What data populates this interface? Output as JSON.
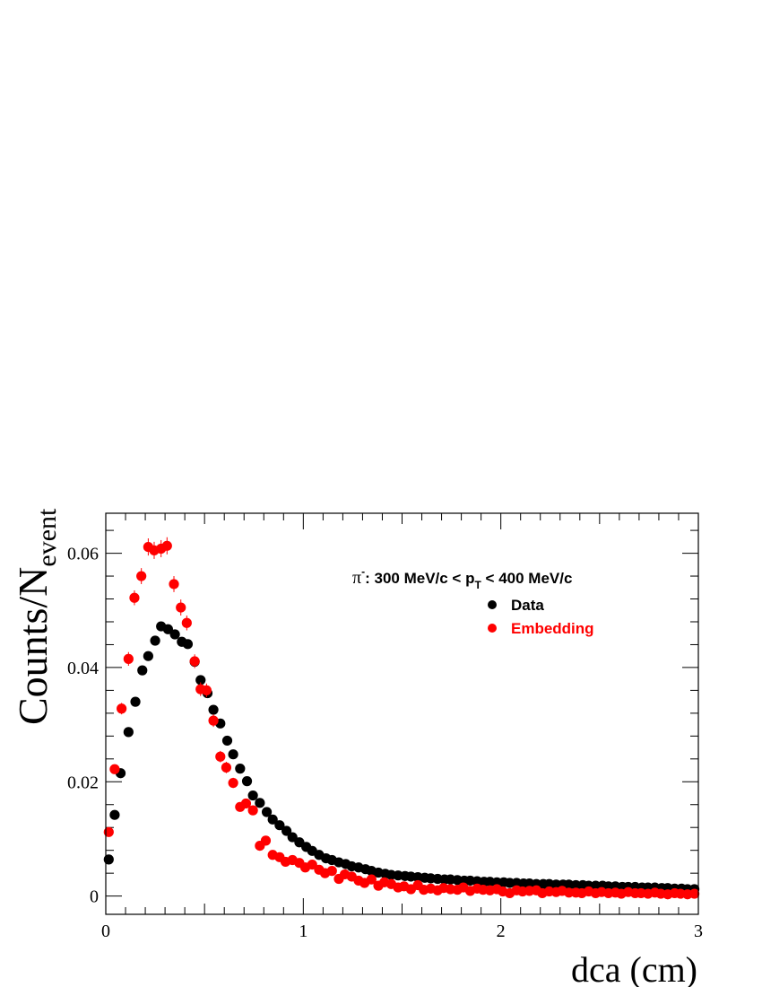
{
  "chart_data": {
    "type": "scatter",
    "xlabel": "dca (cm)",
    "ylabel_main": "Counts/N",
    "ylabel_sub": "event",
    "xlim": [
      0,
      3
    ],
    "ylim": [
      -0.0032,
      0.067
    ],
    "x_ticks": [
      {
        "value": 0,
        "label": "0"
      },
      {
        "value": 1,
        "label": "1"
      },
      {
        "value": 2,
        "label": "2"
      },
      {
        "value": 3,
        "label": "3"
      }
    ],
    "y_ticks": [
      {
        "value": 0,
        "label": "0"
      },
      {
        "value": 0.02,
        "label": "0.02"
      },
      {
        "value": 0.04,
        "label": "0.04"
      },
      {
        "value": 0.06,
        "label": "0.06"
      }
    ],
    "grid": false,
    "legend_placement": "top-right",
    "annotation": {
      "pi_symbol": "π",
      "pi_sup": "-",
      "text_before_sub": ": 300 MeV/c < p",
      "sub": "T",
      "text_after_sub": " < 400 MeV/c"
    },
    "series": [
      {
        "name": "Data",
        "color": "#000000",
        "x": [
          0.015,
          0.045,
          0.075,
          0.115,
          0.15,
          0.185,
          0.215,
          0.25,
          0.28,
          0.315,
          0.35,
          0.385,
          0.415,
          0.45,
          0.48,
          0.515,
          0.545,
          0.58,
          0.615,
          0.645,
          0.68,
          0.715,
          0.745,
          0.78,
          0.815,
          0.845,
          0.88,
          0.915,
          0.945,
          0.98,
          1.015,
          1.045,
          1.08,
          1.115,
          1.145,
          1.18,
          1.215,
          1.245,
          1.28,
          1.315,
          1.345,
          1.38,
          1.415,
          1.445,
          1.48,
          1.515,
          1.545,
          1.58,
          1.615,
          1.645,
          1.68,
          1.715,
          1.745,
          1.78,
          1.815,
          1.845,
          1.88,
          1.915,
          1.945,
          1.98,
          2.015,
          2.045,
          2.08,
          2.115,
          2.145,
          2.18,
          2.215,
          2.245,
          2.28,
          2.315,
          2.345,
          2.38,
          2.415,
          2.445,
          2.48,
          2.515,
          2.545,
          2.58,
          2.615,
          2.645,
          2.68,
          2.715,
          2.745,
          2.78,
          2.815,
          2.845,
          2.88,
          2.915,
          2.945,
          2.98
        ],
        "y": [
          0.0064,
          0.0142,
          0.0215,
          0.0287,
          0.034,
          0.0395,
          0.042,
          0.0447,
          0.0472,
          0.0467,
          0.0458,
          0.0445,
          0.0441,
          0.041,
          0.0378,
          0.0355,
          0.0326,
          0.0302,
          0.0272,
          0.0248,
          0.0223,
          0.0201,
          0.0176,
          0.0163,
          0.0147,
          0.0134,
          0.0124,
          0.0114,
          0.0103,
          0.0094,
          0.0086,
          0.0079,
          0.0072,
          0.0066,
          0.0063,
          0.0059,
          0.0056,
          0.0052,
          0.005,
          0.0047,
          0.0044,
          0.0041,
          0.0039,
          0.0037,
          0.0036,
          0.0035,
          0.0034,
          0.0033,
          0.0032,
          0.0031,
          0.003,
          0.0029,
          0.0029,
          0.0028,
          0.0027,
          0.0027,
          0.0026,
          0.0025,
          0.0025,
          0.0024,
          0.0024,
          0.0023,
          0.0023,
          0.0022,
          0.0022,
          0.0021,
          0.0021,
          0.0021,
          0.002,
          0.002,
          0.002,
          0.0019,
          0.0019,
          0.0018,
          0.0018,
          0.0018,
          0.0017,
          0.0017,
          0.0016,
          0.0016,
          0.0016,
          0.0015,
          0.0015,
          0.0015,
          0.0014,
          0.0014,
          0.0013,
          0.0013,
          0.0012,
          0.0012
        ]
      },
      {
        "name": "Embedding",
        "color": "#ff0000",
        "x": [
          0.015,
          0.045,
          0.08,
          0.115,
          0.145,
          0.18,
          0.215,
          0.245,
          0.28,
          0.31,
          0.345,
          0.38,
          0.41,
          0.45,
          0.48,
          0.51,
          0.545,
          0.58,
          0.61,
          0.645,
          0.68,
          0.71,
          0.745,
          0.78,
          0.81,
          0.845,
          0.88,
          0.91,
          0.945,
          0.98,
          1.01,
          1.045,
          1.08,
          1.11,
          1.145,
          1.18,
          1.21,
          1.245,
          1.28,
          1.31,
          1.345,
          1.38,
          1.41,
          1.445,
          1.48,
          1.51,
          1.545,
          1.58,
          1.61,
          1.645,
          1.68,
          1.71,
          1.745,
          1.78,
          1.81,
          1.845,
          1.88,
          1.91,
          1.945,
          1.98,
          2.01,
          2.045,
          2.08,
          2.11,
          2.145,
          2.18,
          2.21,
          2.245,
          2.28,
          2.31,
          2.345,
          2.38,
          2.41,
          2.445,
          2.48,
          2.51,
          2.545,
          2.58,
          2.61,
          2.645,
          2.68,
          2.71,
          2.745,
          2.78,
          2.81,
          2.845,
          2.88,
          2.91,
          2.945,
          2.98
        ],
        "y": [
          0.0112,
          0.0222,
          0.0328,
          0.0415,
          0.0522,
          0.056,
          0.0611,
          0.0605,
          0.0608,
          0.0613,
          0.0546,
          0.0505,
          0.0478,
          0.0411,
          0.0362,
          0.036,
          0.0307,
          0.0244,
          0.0225,
          0.0198,
          0.0156,
          0.0162,
          0.015,
          0.0088,
          0.0097,
          0.0072,
          0.0068,
          0.006,
          0.0063,
          0.0058,
          0.005,
          0.0055,
          0.0046,
          0.004,
          0.0044,
          0.003,
          0.0038,
          0.0034,
          0.0027,
          0.0023,
          0.0029,
          0.0018,
          0.0024,
          0.0021,
          0.0015,
          0.0017,
          0.0012,
          0.0019,
          0.0011,
          0.0013,
          0.001,
          0.0014,
          0.0012,
          0.0011,
          0.0015,
          0.0009,
          0.0013,
          0.0011,
          0.001,
          0.0012,
          0.0008,
          0.0005,
          0.001,
          0.0008,
          0.0009,
          0.001,
          0.0005,
          0.0008,
          0.0007,
          0.0009,
          0.0006,
          0.0006,
          0.0005,
          0.0008,
          0.0005,
          0.0007,
          0.0005,
          0.0006,
          0.0004,
          0.0007,
          0.0005,
          0.0005,
          0.0004,
          0.0006,
          0.0004,
          0.0003,
          0.0005,
          0.0004,
          0.0003,
          0.0004
        ],
        "yerr": [
          0.0006,
          0.0008,
          0.001,
          0.0012,
          0.0013,
          0.0014,
          0.0015,
          0.0015,
          0.0015,
          0.0015,
          0.0014,
          0.0014,
          0.0013,
          0.0012,
          0.0012,
          0.0012,
          0.0011,
          0.001,
          0.001,
          0.0009,
          0.0008,
          0.0008,
          0.0008,
          0.0006,
          0.0006,
          0.0005,
          0.0005,
          0.0005,
          0.0005,
          0.0005,
          0.0004,
          0.0004,
          0.0004,
          0.0004,
          0.0004,
          0.0003,
          0.0003,
          0.0003,
          0.0003,
          0.0003,
          0.0003,
          0.0003,
          0.0003,
          0.0003,
          0.0002,
          0.0002,
          0.0002,
          0.0002,
          0.0002,
          0.0002,
          0.0002,
          0.0002,
          0.0002,
          0.0002,
          0.0002,
          0.0002,
          0.0002,
          0.0002,
          0.0002,
          0.0002,
          0.0002,
          0.0002,
          0.0002,
          0.0002,
          0.0002,
          0.0002,
          0.0002,
          0.0002,
          0.0002,
          0.0002,
          0.0002,
          0.0002,
          0.0002,
          0.0002,
          0.0002,
          0.0002,
          0.0002,
          0.0002,
          0.0002,
          0.0002,
          0.0002,
          0.0002,
          0.0002,
          0.0002,
          0.0002,
          0.0002,
          0.0002,
          0.0002,
          0.0002,
          0.0002
        ]
      }
    ]
  }
}
